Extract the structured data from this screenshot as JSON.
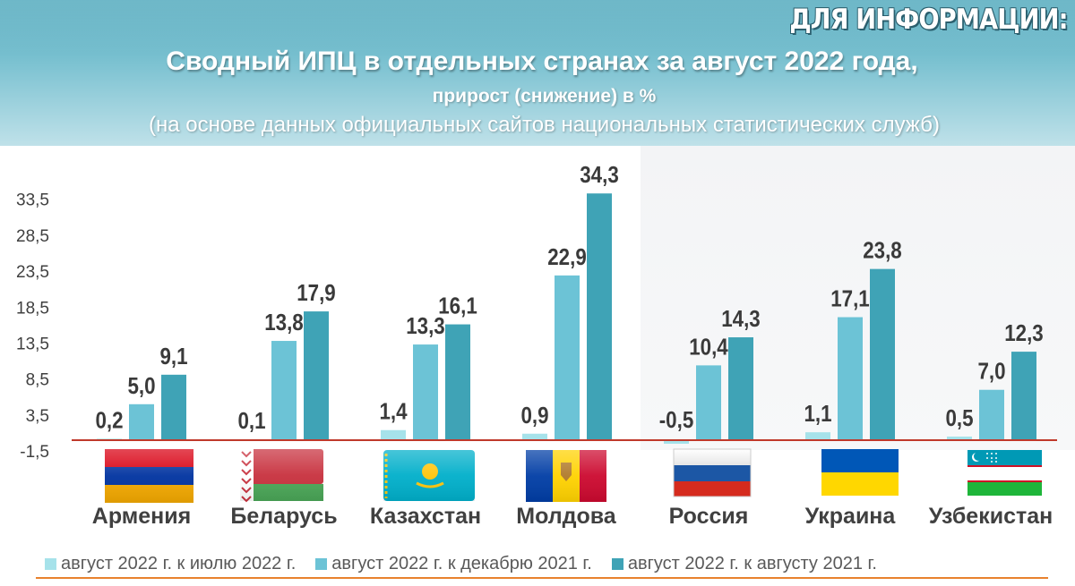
{
  "header": {
    "info_label": "ДЛЯ ИНФОРМАЦИИ:",
    "title": "Сводный ИПЦ в отдельных странах за август 2022 года,",
    "subtitle": "прирост (снижение) в %",
    "source_note": "(на основе данных официальных сайтов национальных статистических служб)"
  },
  "colors": {
    "header_bg": "#6fb7c8",
    "series": [
      "#a6e2ea",
      "#6cc3d6",
      "#3fa3b6"
    ],
    "zero_line": "#c0392b",
    "bottom_rule": "#e8822e"
  },
  "chart_data": {
    "type": "bar",
    "categories": [
      "Армения",
      "Беларусь",
      "Казахстан",
      "Молдова",
      "Россия",
      "Украина",
      "Узбекистан"
    ],
    "series": [
      {
        "name": "август 2022 г. к июлю 2022 г.",
        "values": [
          0.2,
          0.1,
          1.4,
          0.9,
          -0.5,
          1.1,
          0.5
        ],
        "labels": [
          "0,2",
          "0,1",
          "1,4",
          "0,9",
          "-0,5",
          "1,1",
          "0,5"
        ]
      },
      {
        "name": "август 2022 г. к декабрю 2021 г.",
        "values": [
          5.0,
          13.8,
          13.3,
          22.9,
          10.4,
          17.1,
          7.0
        ],
        "labels": [
          "5,0",
          "13,8",
          "13,3",
          "22,9",
          "10,4",
          "17,1",
          "7,0"
        ]
      },
      {
        "name": "август 2022 г. к августу 2021 г.",
        "values": [
          9.1,
          17.9,
          16.1,
          34.3,
          14.3,
          23.8,
          12.3
        ],
        "labels": [
          "9,1",
          "17,9",
          "16,1",
          "34,3",
          "14,3",
          "23,8",
          "12,3"
        ]
      }
    ],
    "yticks": [
      -1.5,
      3.5,
      8.5,
      13.5,
      18.5,
      23.5,
      28.5,
      33.5
    ],
    "ytick_labels": [
      "-1,5",
      "3,5",
      "8,5",
      "13,5",
      "18,5",
      "23,5",
      "28,5",
      "33,5"
    ],
    "ylim": [
      -1.5,
      33.5
    ],
    "flags": [
      "armenia-flag",
      "belarus-flag",
      "kazakhstan-flag",
      "moldova-flag",
      "russia-flag",
      "ukraine-flag",
      "uzbekistan-flag"
    ],
    "legend_position": "bottom",
    "grid": false
  }
}
